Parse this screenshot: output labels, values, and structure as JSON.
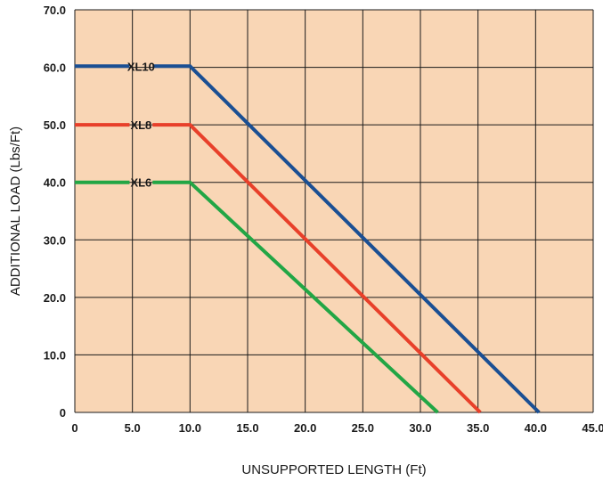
{
  "chart_data": {
    "type": "line",
    "xlabel": "UNSUPPORTED LENGTH (Ft)",
    "ylabel": "ADDITIONAL LOAD (Lbs/Ft)",
    "xlim": [
      0,
      45
    ],
    "ylim": [
      0,
      70
    ],
    "x_ticks": [
      0,
      5,
      10,
      15,
      20,
      25,
      30,
      35,
      40,
      45
    ],
    "x_tick_labels": [
      "0",
      "5.0",
      "10.0",
      "15.0",
      "20.0",
      "25.0",
      "30.0",
      "35.0",
      "40.0",
      "45.0"
    ],
    "y_ticks": [
      0,
      10,
      20,
      30,
      40,
      50,
      60,
      70
    ],
    "y_tick_labels": [
      "0",
      "10.0",
      "20.0",
      "30.0",
      "40.0",
      "50.0",
      "60.0",
      "70.0"
    ],
    "grid": true,
    "background_color": "#f9d6b5",
    "series": [
      {
        "name": "XL10",
        "color": "#1b4f93",
        "x": [
          0,
          10,
          40.3
        ],
        "y": [
          60.2,
          60.2,
          0
        ]
      },
      {
        "name": "XL8",
        "color": "#e8402a",
        "x": [
          0,
          10,
          35.2
        ],
        "y": [
          50,
          50,
          0
        ]
      },
      {
        "name": "XL6",
        "color": "#22a645",
        "x": [
          0,
          10,
          31.5
        ],
        "y": [
          40,
          40,
          0
        ]
      }
    ]
  }
}
